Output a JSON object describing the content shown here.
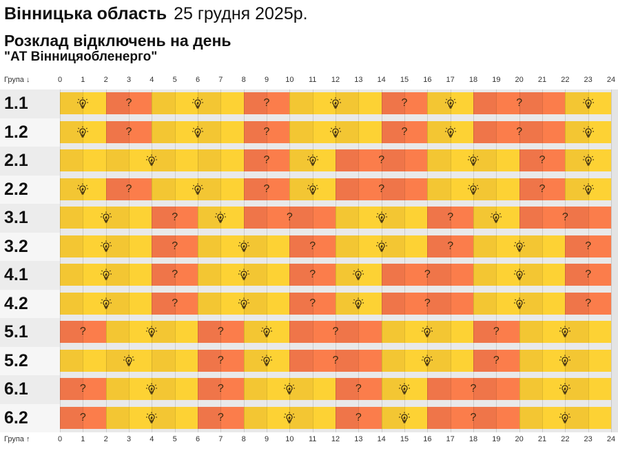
{
  "header": {
    "region": "Вінницька область",
    "date": "25 грудня 2025р.",
    "subtitle": "Розклад відключень на день",
    "company": "\"АТ Вінницяобленерго\""
  },
  "axis": {
    "top_label": "Група ↓",
    "bottom_label": "Група ↑",
    "hours": [
      "0",
      "1",
      "2",
      "3",
      "4",
      "5",
      "6",
      "7",
      "8",
      "9",
      "10",
      "11",
      "12",
      "13",
      "14",
      "15",
      "16",
      "17",
      "18",
      "19",
      "20",
      "21",
      "22",
      "23",
      "24"
    ]
  },
  "legend_icons": {
    "on": "lightbulb-icon",
    "possible": "question-mark-icon"
  },
  "colors": {
    "on": "#fdd234",
    "on_alt": "#f3c633",
    "possible": "#fb7d4b",
    "possible_alt": "#ef7549"
  },
  "groups": [
    {
      "name": "1.1",
      "segments": [
        [
          0,
          2,
          "on"
        ],
        [
          2,
          4,
          "possible"
        ],
        [
          4,
          8,
          "on"
        ],
        [
          8,
          10,
          "possible"
        ],
        [
          10,
          14,
          "on"
        ],
        [
          14,
          16,
          "possible"
        ],
        [
          16,
          18,
          "on"
        ],
        [
          18,
          22,
          "possible"
        ],
        [
          22,
          24,
          "on"
        ]
      ]
    },
    {
      "name": "1.2",
      "segments": [
        [
          0,
          2,
          "on"
        ],
        [
          2,
          4,
          "possible"
        ],
        [
          4,
          8,
          "on"
        ],
        [
          8,
          10,
          "possible"
        ],
        [
          10,
          14,
          "on"
        ],
        [
          14,
          16,
          "possible"
        ],
        [
          16,
          18,
          "on"
        ],
        [
          18,
          22,
          "possible"
        ],
        [
          22,
          24,
          "on"
        ]
      ]
    },
    {
      "name": "2.1",
      "segments": [
        [
          0,
          8,
          "on"
        ],
        [
          8,
          10,
          "possible"
        ],
        [
          10,
          12,
          "on"
        ],
        [
          12,
          16,
          "possible"
        ],
        [
          16,
          20,
          "on"
        ],
        [
          20,
          22,
          "possible"
        ],
        [
          22,
          24,
          "on"
        ]
      ]
    },
    {
      "name": "2.2",
      "segments": [
        [
          0,
          2,
          "on"
        ],
        [
          2,
          4,
          "possible"
        ],
        [
          4,
          8,
          "on"
        ],
        [
          8,
          10,
          "possible"
        ],
        [
          10,
          12,
          "on"
        ],
        [
          12,
          16,
          "possible"
        ],
        [
          16,
          20,
          "on"
        ],
        [
          20,
          22,
          "possible"
        ],
        [
          22,
          24,
          "on"
        ]
      ]
    },
    {
      "name": "3.1",
      "segments": [
        [
          0,
          4,
          "on"
        ],
        [
          4,
          6,
          "possible"
        ],
        [
          6,
          8,
          "on"
        ],
        [
          8,
          12,
          "possible"
        ],
        [
          12,
          16,
          "on"
        ],
        [
          16,
          18,
          "possible"
        ],
        [
          18,
          20,
          "on"
        ],
        [
          20,
          24,
          "possible"
        ]
      ]
    },
    {
      "name": "3.2",
      "segments": [
        [
          0,
          4,
          "on"
        ],
        [
          4,
          6,
          "possible"
        ],
        [
          6,
          10,
          "on"
        ],
        [
          10,
          12,
          "possible"
        ],
        [
          12,
          16,
          "on"
        ],
        [
          16,
          18,
          "possible"
        ],
        [
          18,
          22,
          "on"
        ],
        [
          22,
          24,
          "possible"
        ]
      ]
    },
    {
      "name": "4.1",
      "segments": [
        [
          0,
          4,
          "on"
        ],
        [
          4,
          6,
          "possible"
        ],
        [
          6,
          10,
          "on"
        ],
        [
          10,
          12,
          "possible"
        ],
        [
          12,
          14,
          "on"
        ],
        [
          14,
          18,
          "possible"
        ],
        [
          18,
          22,
          "on"
        ],
        [
          22,
          24,
          "possible"
        ]
      ]
    },
    {
      "name": "4.2",
      "segments": [
        [
          0,
          4,
          "on"
        ],
        [
          4,
          6,
          "possible"
        ],
        [
          6,
          10,
          "on"
        ],
        [
          10,
          12,
          "possible"
        ],
        [
          12,
          14,
          "on"
        ],
        [
          14,
          18,
          "possible"
        ],
        [
          18,
          22,
          "on"
        ],
        [
          22,
          24,
          "possible"
        ]
      ]
    },
    {
      "name": "5.1",
      "segments": [
        [
          0,
          2,
          "possible"
        ],
        [
          2,
          6,
          "on"
        ],
        [
          6,
          8,
          "possible"
        ],
        [
          8,
          10,
          "on"
        ],
        [
          10,
          14,
          "possible"
        ],
        [
          14,
          18,
          "on"
        ],
        [
          18,
          20,
          "possible"
        ],
        [
          20,
          24,
          "on"
        ]
      ]
    },
    {
      "name": "5.2",
      "segments": [
        [
          0,
          6,
          "on"
        ],
        [
          6,
          8,
          "possible"
        ],
        [
          8,
          10,
          "on"
        ],
        [
          10,
          14,
          "possible"
        ],
        [
          14,
          18,
          "on"
        ],
        [
          18,
          20,
          "possible"
        ],
        [
          20,
          24,
          "on"
        ]
      ]
    },
    {
      "name": "6.1",
      "segments": [
        [
          0,
          2,
          "possible"
        ],
        [
          2,
          6,
          "on"
        ],
        [
          6,
          8,
          "possible"
        ],
        [
          8,
          12,
          "on"
        ],
        [
          12,
          14,
          "possible"
        ],
        [
          14,
          16,
          "on"
        ],
        [
          16,
          20,
          "possible"
        ],
        [
          20,
          24,
          "on"
        ]
      ]
    },
    {
      "name": "6.2",
      "segments": [
        [
          0,
          2,
          "possible"
        ],
        [
          2,
          6,
          "on"
        ],
        [
          6,
          8,
          "possible"
        ],
        [
          8,
          12,
          "on"
        ],
        [
          12,
          14,
          "possible"
        ],
        [
          14,
          16,
          "on"
        ],
        [
          16,
          20,
          "possible"
        ],
        [
          20,
          24,
          "on"
        ]
      ]
    }
  ]
}
